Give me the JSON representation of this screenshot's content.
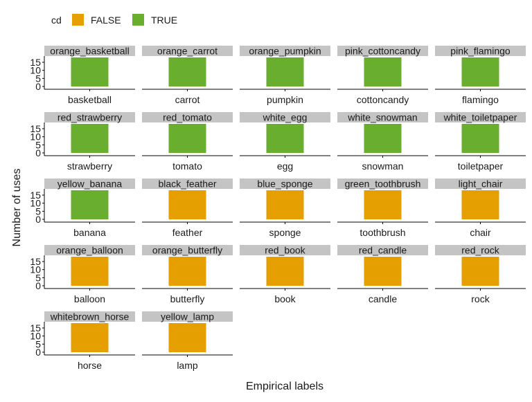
{
  "chart_data": {
    "type": "bar",
    "xlabel": "Empirical labels",
    "ylabel": "Number of uses",
    "ylim": [
      0,
      18
    ],
    "yticks": [
      0,
      5,
      10,
      15
    ],
    "grid": false,
    "legend": {
      "title": "cd",
      "position": "top-left",
      "entries": [
        {
          "label": "FALSE",
          "color": "#E69F00"
        },
        {
          "label": "TRUE",
          "color": "#6AAE2F"
        }
      ]
    },
    "panels": [
      {
        "title": "orange_basketball",
        "category": "basketball",
        "value": 18,
        "cd": "TRUE"
      },
      {
        "title": "orange_carrot",
        "category": "carrot",
        "value": 18,
        "cd": "TRUE"
      },
      {
        "title": "orange_pumpkin",
        "category": "pumpkin",
        "value": 18,
        "cd": "TRUE"
      },
      {
        "title": "pink_cottoncandy",
        "category": "cottoncandy",
        "value": 18,
        "cd": "TRUE"
      },
      {
        "title": "pink_flamingo",
        "category": "flamingo",
        "value": 18,
        "cd": "TRUE"
      },
      {
        "title": "red_strawberry",
        "category": "strawberry",
        "value": 18,
        "cd": "TRUE"
      },
      {
        "title": "red_tomato",
        "category": "tomato",
        "value": 18,
        "cd": "TRUE"
      },
      {
        "title": "white_egg",
        "category": "egg",
        "value": 18,
        "cd": "TRUE"
      },
      {
        "title": "white_snowman",
        "category": "snowman",
        "value": 18,
        "cd": "TRUE"
      },
      {
        "title": "white_toiletpaper",
        "category": "toiletpaper",
        "value": 18,
        "cd": "TRUE"
      },
      {
        "title": "yellow_banana",
        "category": "banana",
        "value": 18,
        "cd": "TRUE"
      },
      {
        "title": "black_feather",
        "category": "feather",
        "value": 18,
        "cd": "FALSE"
      },
      {
        "title": "blue_sponge",
        "category": "sponge",
        "value": 18,
        "cd": "FALSE"
      },
      {
        "title": "green_toothbrush",
        "category": "toothbrush",
        "value": 18,
        "cd": "FALSE"
      },
      {
        "title": "light_chair",
        "category": "chair",
        "value": 18,
        "cd": "FALSE"
      },
      {
        "title": "orange_balloon",
        "category": "balloon",
        "value": 18,
        "cd": "FALSE"
      },
      {
        "title": "orange_butterfly",
        "category": "butterfly",
        "value": 18,
        "cd": "FALSE"
      },
      {
        "title": "red_book",
        "category": "book",
        "value": 18,
        "cd": "FALSE"
      },
      {
        "title": "red_candle",
        "category": "candle",
        "value": 18,
        "cd": "FALSE"
      },
      {
        "title": "red_rock",
        "category": "rock",
        "value": 18,
        "cd": "FALSE"
      },
      {
        "title": "whitebrown_horse",
        "category": "horse",
        "value": 18,
        "cd": "FALSE"
      },
      {
        "title": "yellow_lamp",
        "category": "lamp",
        "value": 18,
        "cd": "FALSE"
      }
    ]
  }
}
